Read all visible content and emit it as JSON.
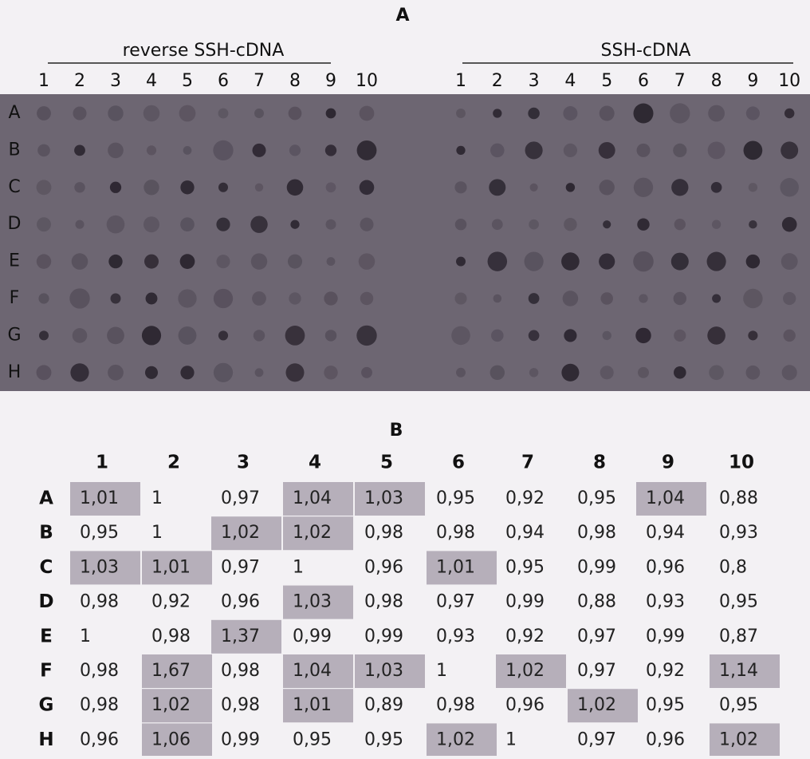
{
  "panel_a": {
    "label": "A",
    "left_title": "reverse SSH-cDNA",
    "right_title": "SSH-cDNA",
    "columns": [
      "1",
      "2",
      "3",
      "4",
      "5",
      "6",
      "7",
      "8",
      "9",
      "10"
    ],
    "rows": [
      "A",
      "B",
      "C",
      "D",
      "E",
      "F",
      "G",
      "H"
    ]
  },
  "panel_b": {
    "label": "B",
    "columns": [
      "1",
      "2",
      "3",
      "4",
      "5",
      "6",
      "7",
      "8",
      "9",
      "10"
    ],
    "rows": [
      {
        "label": "A",
        "cells": [
          "1,01",
          "1",
          "0,97",
          "1,04",
          "1,03",
          "0,95",
          "0,92",
          "0,95",
          "1,04",
          "0,88"
        ],
        "shaded": [
          true,
          false,
          false,
          true,
          true,
          false,
          false,
          false,
          true,
          false
        ]
      },
      {
        "label": "B",
        "cells": [
          "0,95",
          "1",
          "1,02",
          "1,02",
          "0,98",
          "0,98",
          "0,94",
          "0,98",
          "0,94",
          "0,93"
        ],
        "shaded": [
          false,
          false,
          true,
          true,
          false,
          false,
          false,
          false,
          false,
          false
        ]
      },
      {
        "label": "C",
        "cells": [
          "1,03",
          "1,01",
          "0,97",
          "1",
          "0,96",
          "1,01",
          "0,95",
          "0,99",
          "0,96",
          "0,8"
        ],
        "shaded": [
          true,
          true,
          false,
          false,
          false,
          true,
          false,
          false,
          false,
          false
        ]
      },
      {
        "label": "D",
        "cells": [
          "0,98",
          "0,92",
          "0,96",
          "1,03",
          "0,98",
          "0,97",
          "0,99",
          "0,88",
          "0,93",
          "0,95"
        ],
        "shaded": [
          false,
          false,
          false,
          true,
          false,
          false,
          false,
          false,
          false,
          false
        ]
      },
      {
        "label": "E",
        "cells": [
          "1",
          "0,98",
          "1,37",
          "0,99",
          "0,99",
          "0,93",
          "0,92",
          "0,97",
          "0,99",
          "0,87"
        ],
        "shaded": [
          false,
          false,
          true,
          false,
          false,
          false,
          false,
          false,
          false,
          false
        ]
      },
      {
        "label": "F",
        "cells": [
          "0,98",
          "1,67",
          "0,98",
          "1,04",
          "1,03",
          "1",
          "1,02",
          "0,97",
          "0,92",
          "1,14"
        ],
        "shaded": [
          false,
          true,
          false,
          true,
          true,
          false,
          true,
          false,
          false,
          true
        ]
      },
      {
        "label": "G",
        "cells": [
          "0,98",
          "1,02",
          "0,98",
          "1,01",
          "0,89",
          "0,98",
          "0,96",
          "1,02",
          "0,95",
          "0,95"
        ],
        "shaded": [
          false,
          true,
          false,
          true,
          false,
          false,
          false,
          true,
          false,
          false
        ]
      },
      {
        "label": "H",
        "cells": [
          "0,96",
          "1,06",
          "0,99",
          "0,95",
          "0,95",
          "1,02",
          "1",
          "0,97",
          "0,96",
          "1,02"
        ],
        "shaded": [
          false,
          true,
          false,
          false,
          false,
          true,
          false,
          false,
          false,
          true
        ]
      }
    ]
  }
}
